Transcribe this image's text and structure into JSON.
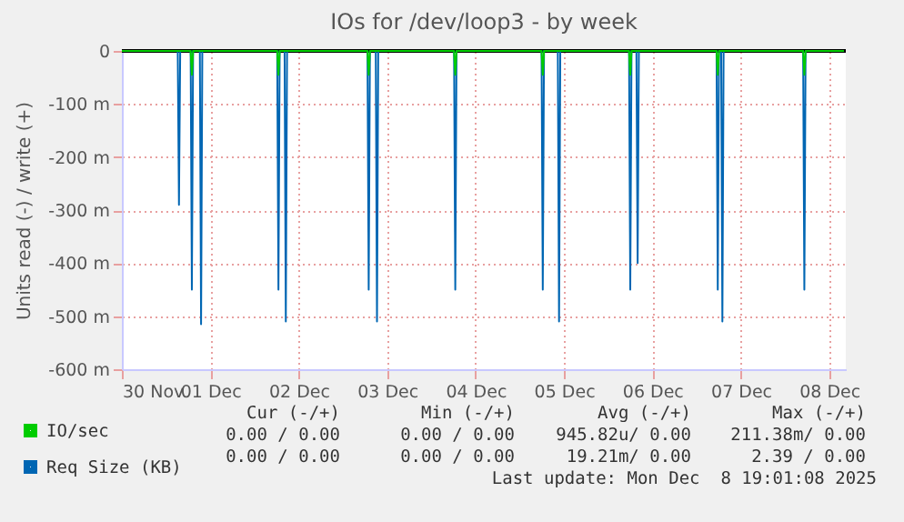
{
  "chart_data": {
    "type": "line",
    "title": "IOs for /dev/loop3 - by week",
    "ylabel": "Units read (-) / write (+)",
    "xlim": [
      "2025-11-30",
      "2025-12-08T04:30"
    ],
    "xticks": [
      {
        "value": "2025-11-30",
        "label": "30 Nov"
      },
      {
        "value": "2025-12-01",
        "label": "01 Dec"
      },
      {
        "value": "2025-12-02",
        "label": "02 Dec"
      },
      {
        "value": "2025-12-03",
        "label": "03 Dec"
      },
      {
        "value": "2025-12-04",
        "label": "04 Dec"
      },
      {
        "value": "2025-12-05",
        "label": "05 Dec"
      },
      {
        "value": "2025-12-06",
        "label": "06 Dec"
      },
      {
        "value": "2025-12-07",
        "label": "07 Dec"
      },
      {
        "value": "2025-12-08",
        "label": "08 Dec"
      }
    ],
    "ylim": [
      -600,
      0
    ],
    "yticks": [
      {
        "value": -600,
        "label": "-600 m"
      },
      {
        "value": -500,
        "label": "-500 m"
      },
      {
        "value": -400,
        "label": "-400 m"
      },
      {
        "value": -300,
        "label": "-300 m"
      },
      {
        "value": -200,
        "label": "-200 m"
      },
      {
        "value": -100,
        "label": "-100 m"
      },
      0
    ],
    "grid": true,
    "legend": "bottom",
    "marker": "none",
    "line_style": "solid",
    "ref_lines": [
      {
        "axis": "y",
        "value": 0,
        "color": "#000000"
      }
    ],
    "series": [
      {
        "name": "Req Size (KB)",
        "color": "#0066b3",
        "x": [
          "2025-11-30T00:00",
          "2025-11-30T15:10",
          "2025-11-30T15:30",
          "2025-11-30T15:50",
          "2025-11-30T18:40",
          "2025-11-30T19:00",
          "2025-11-30T19:20",
          "2025-11-30T21:10",
          "2025-11-30T21:30",
          "2025-11-30T21:50",
          "2025-12-01T18:10",
          "2025-12-01T18:30",
          "2025-12-01T18:50",
          "2025-12-01T20:10",
          "2025-12-01T20:30",
          "2025-12-01T20:50",
          "2025-12-02T18:40",
          "2025-12-02T19:00",
          "2025-12-02T19:20",
          "2025-12-02T20:55",
          "2025-12-02T21:15",
          "2025-12-02T21:35",
          "2025-12-03T18:10",
          "2025-12-03T18:30",
          "2025-12-03T18:50",
          "2025-12-04T17:55",
          "2025-12-04T18:15",
          "2025-12-04T18:35",
          "2025-12-04T22:20",
          "2025-12-04T22:40",
          "2025-12-04T23:00",
          "2025-12-05T17:40",
          "2025-12-05T18:00",
          "2025-12-05T18:20",
          "2025-12-05T19:40",
          "2025-12-05T20:00",
          "2025-12-05T20:20",
          "2025-12-06T17:25",
          "2025-12-06T17:45",
          "2025-12-06T18:05",
          "2025-12-06T18:40",
          "2025-12-06T19:00",
          "2025-12-06T19:20",
          "2025-12-07T16:55",
          "2025-12-07T17:15",
          "2025-12-07T17:35",
          "2025-12-08T04:00"
        ],
        "values": [
          0,
          0,
          -290,
          0,
          0,
          -450,
          0,
          0,
          -515,
          0,
          0,
          -450,
          0,
          0,
          -510,
          0,
          0,
          -450,
          0,
          0,
          -510,
          0,
          0,
          -450,
          0,
          0,
          -450,
          0,
          0,
          -510,
          0,
          0,
          -450,
          0,
          0,
          -400,
          0,
          0,
          -450,
          0,
          0,
          -510,
          0,
          0,
          -450,
          0,
          0
        ]
      },
      {
        "name": "IO/sec",
        "color": "#00cc00",
        "x": [
          "2025-11-30T00:00",
          "2025-11-30T18:40",
          "2025-11-30T19:00",
          "2025-11-30T19:20",
          "2025-12-01T18:10",
          "2025-12-01T18:30",
          "2025-12-01T18:50",
          "2025-12-02T18:40",
          "2025-12-02T19:00",
          "2025-12-02T19:20",
          "2025-12-03T18:10",
          "2025-12-03T18:30",
          "2025-12-03T18:50",
          "2025-12-04T17:55",
          "2025-12-04T18:15",
          "2025-12-04T18:35",
          "2025-12-05T17:40",
          "2025-12-05T18:00",
          "2025-12-05T18:20",
          "2025-12-06T17:25",
          "2025-12-06T17:45",
          "2025-12-06T18:05",
          "2025-12-07T16:55",
          "2025-12-07T17:15",
          "2025-12-07T17:35",
          "2025-12-08T04:00"
        ],
        "values": [
          0,
          0,
          -45,
          0,
          0,
          -45,
          0,
          0,
          -45,
          0,
          0,
          -45,
          0,
          0,
          -45,
          0,
          0,
          -45,
          0,
          0,
          -45,
          0,
          0,
          -45,
          0,
          0
        ]
      }
    ],
    "annotations": [
      "Cur (-/+)",
      "Min (-/+)",
      "Avg (-/+)",
      "Max (-/+)",
      "0.00 / 0.00",
      "0.00 / 0.00",
      "945.82u/ 0.00",
      "211.38m/ 0.00",
      "0.00 / 0.00",
      "0.00 / 0.00",
      "19.21m/ 0.00",
      "2.39 / 0.00",
      "Last update: Mon Dec  8 19:01:08 2025"
    ]
  }
}
